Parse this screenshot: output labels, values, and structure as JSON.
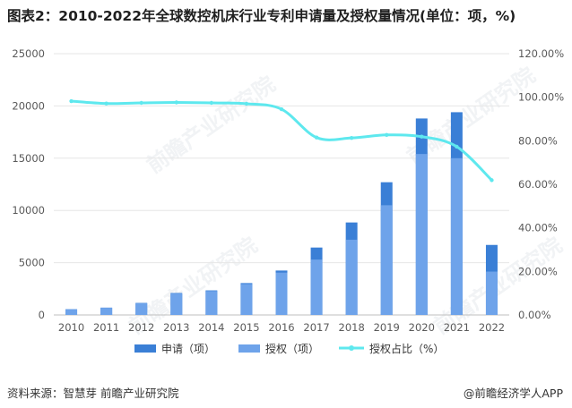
{
  "title": "图表2：2010-2022年全球数控机床行业专利申请量及授权量情况(单位：项，%)",
  "source_left": "资料来源：智慧芽 前瞻产业研究院",
  "source_right": "@前瞻经济学人APP",
  "watermark": "前瞻产业研究院",
  "colors": {
    "application": "#3a7fd6",
    "grant": "#6ea3ea",
    "ratio": "#5ee8ee",
    "axis_text": "#595959",
    "grid": "#e6e6e6"
  },
  "chart_data": {
    "type": "bar",
    "categories": [
      "2010",
      "2011",
      "2012",
      "2013",
      "2014",
      "2015",
      "2016",
      "2017",
      "2018",
      "2019",
      "2020",
      "2021",
      "2022"
    ],
    "series": [
      {
        "name": "申请（项）",
        "type": "bar",
        "axis": "left",
        "values": [
          550,
          700,
          1150,
          2100,
          2350,
          3050,
          4250,
          6450,
          8850,
          12700,
          18800,
          19400,
          6700
        ]
      },
      {
        "name": "授权（项）",
        "type": "bar",
        "axis": "left",
        "values": [
          540,
          680,
          1120,
          2050,
          2290,
          2960,
          4050,
          5300,
          7200,
          10500,
          15400,
          15000,
          4150
        ]
      },
      {
        "name": "授权占比（%）",
        "type": "line",
        "axis": "right",
        "values": [
          98.2,
          97.1,
          97.4,
          97.6,
          97.4,
          97.0,
          94.5,
          81.5,
          81.3,
          82.7,
          81.9,
          77.3,
          61.9
        ]
      }
    ],
    "y_left": {
      "min": 0,
      "max": 25000,
      "ticks": [
        "0",
        "5000",
        "10000",
        "15000",
        "20000",
        "25000"
      ]
    },
    "y_right": {
      "min": 0,
      "max": 120,
      "ticks": [
        "0.00%",
        "20.00%",
        "40.00%",
        "60.00%",
        "80.00%",
        "100.00%",
        "120.00%"
      ]
    },
    "legend_position": "bottom"
  }
}
